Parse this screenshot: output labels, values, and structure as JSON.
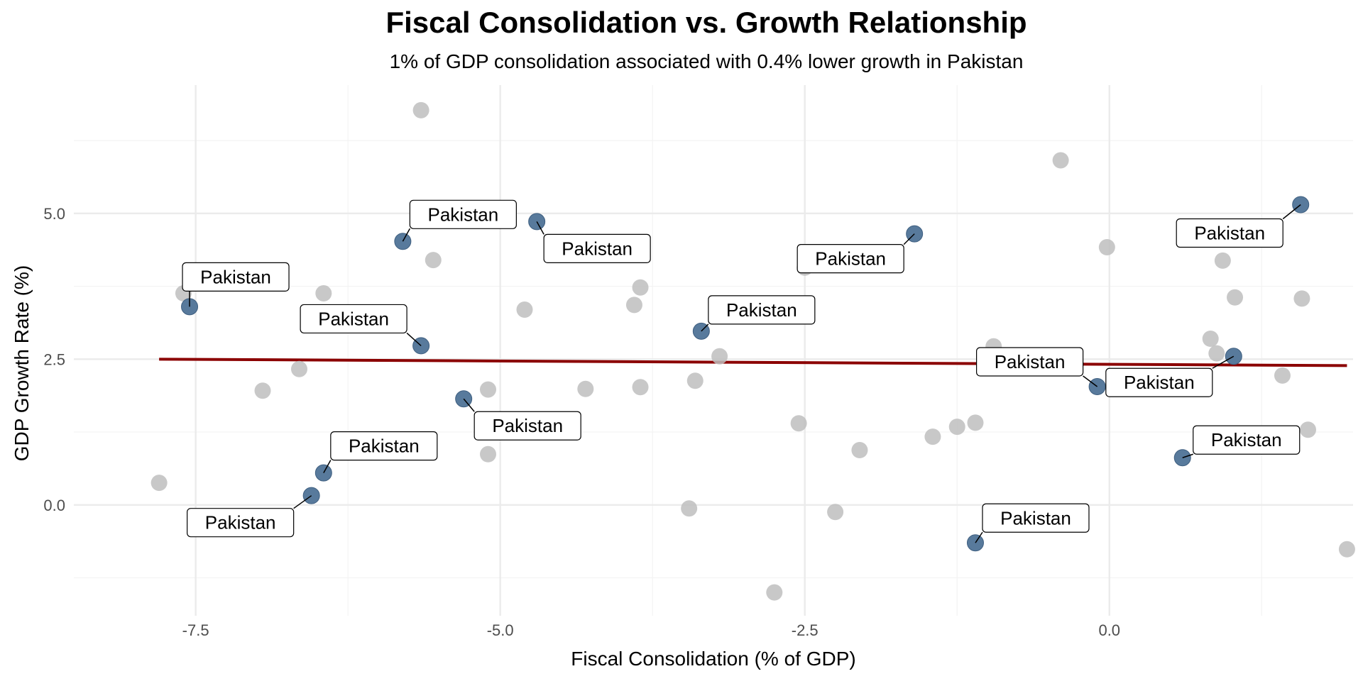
{
  "chart_data": {
    "type": "scatter",
    "title": "Fiscal Consolidation vs. Growth Relationship",
    "subtitle": "1% of GDP consolidation associated with 0.4% lower growth in Pakistan",
    "xlabel": "Fiscal Consolidation (% of GDP)",
    "ylabel": "GDP Growth Rate (%)",
    "xlim": [
      -8.5,
      2.0
    ],
    "ylim": [
      -1.9,
      7.2
    ],
    "x_ticks": [
      -7.5,
      -5.0,
      -2.5,
      0.0
    ],
    "x_tick_labels": [
      "-7.5",
      "-5.0",
      "-2.5",
      "0.0"
    ],
    "y_ticks": [
      0.0,
      2.5,
      5.0
    ],
    "y_tick_labels": [
      "0.0",
      "2.5",
      "5.0"
    ],
    "grid": true,
    "legend": "none",
    "colors": {
      "other": "#bebebe",
      "highlight": "#587a9c",
      "trend": "#8b0000"
    },
    "series": [
      {
        "values": [
          {
            "x": -7.8,
            "y": 0.38
          },
          {
            "x": -7.6,
            "y": 3.63
          },
          {
            "x": -6.95,
            "y": 1.96
          },
          {
            "x": -6.65,
            "y": 2.33
          },
          {
            "x": -6.45,
            "y": 3.63
          },
          {
            "x": -5.65,
            "y": 6.77
          },
          {
            "x": -5.55,
            "y": 4.2
          },
          {
            "x": -5.1,
            "y": 1.98
          },
          {
            "x": -5.1,
            "y": 0.87
          },
          {
            "x": -4.8,
            "y": 3.35
          },
          {
            "x": -4.3,
            "y": 1.99
          },
          {
            "x": -3.9,
            "y": 3.43
          },
          {
            "x": -3.85,
            "y": 3.73
          },
          {
            "x": -3.85,
            "y": 2.02
          },
          {
            "x": -3.45,
            "y": -0.06
          },
          {
            "x": -3.4,
            "y": 2.13
          },
          {
            "x": -3.2,
            "y": 2.55
          },
          {
            "x": -2.75,
            "y": -1.5
          },
          {
            "x": -2.55,
            "y": 1.4
          },
          {
            "x": -2.5,
            "y": 4.07
          },
          {
            "x": -2.25,
            "y": -0.12
          },
          {
            "x": -2.05,
            "y": 0.94
          },
          {
            "x": -1.45,
            "y": 1.17
          },
          {
            "x": -1.25,
            "y": 1.34
          },
          {
            "x": -1.1,
            "y": 1.41
          },
          {
            "x": -0.95,
            "y": 2.72
          },
          {
            "x": -0.4,
            "y": 5.91
          },
          {
            "x": -0.02,
            "y": 4.42
          },
          {
            "x": 0.83,
            "y": 2.85
          },
          {
            "x": 0.88,
            "y": 2.6
          },
          {
            "x": 0.93,
            "y": 4.19
          },
          {
            "x": 1.03,
            "y": 3.56
          },
          {
            "x": 1.42,
            "y": 2.22
          },
          {
            "x": 1.58,
            "y": 3.54
          },
          {
            "x": 1.63,
            "y": 1.29
          },
          {
            "x": 1.95,
            "y": -0.76
          }
        ]
      },
      {
        "values": [
          {
            "x": -7.55,
            "y": 3.4,
            "label": "Pakistan"
          },
          {
            "x": -5.8,
            "y": 4.52,
            "label": "Pakistan"
          },
          {
            "x": -4.7,
            "y": 4.86,
            "label": "Pakistan"
          },
          {
            "x": -5.65,
            "y": 2.73,
            "label": "Pakistan"
          },
          {
            "x": -5.3,
            "y": 1.82,
            "label": "Pakistan"
          },
          {
            "x": -6.45,
            "y": 0.55,
            "label": "Pakistan"
          },
          {
            "x": -6.55,
            "y": 0.16,
            "label": "Pakistan"
          },
          {
            "x": -3.35,
            "y": 2.98,
            "label": "Pakistan"
          },
          {
            "x": -1.6,
            "y": 4.65,
            "label": "Pakistan"
          },
          {
            "x": -1.1,
            "y": -0.65,
            "label": "Pakistan"
          },
          {
            "x": -0.1,
            "y": 2.03,
            "label": "Pakistan"
          },
          {
            "x": 0.6,
            "y": 0.81,
            "label": "Pakistan"
          },
          {
            "x": 1.02,
            "y": 2.55,
            "label": "Pakistan"
          },
          {
            "x": 1.57,
            "y": 5.15,
            "label": "Pakistan"
          }
        ]
      },
      {
        "type": "line",
        "values": [
          {
            "x": -7.8,
            "y": 2.5
          },
          {
            "x": 1.95,
            "y": 2.39
          }
        ]
      }
    ]
  }
}
